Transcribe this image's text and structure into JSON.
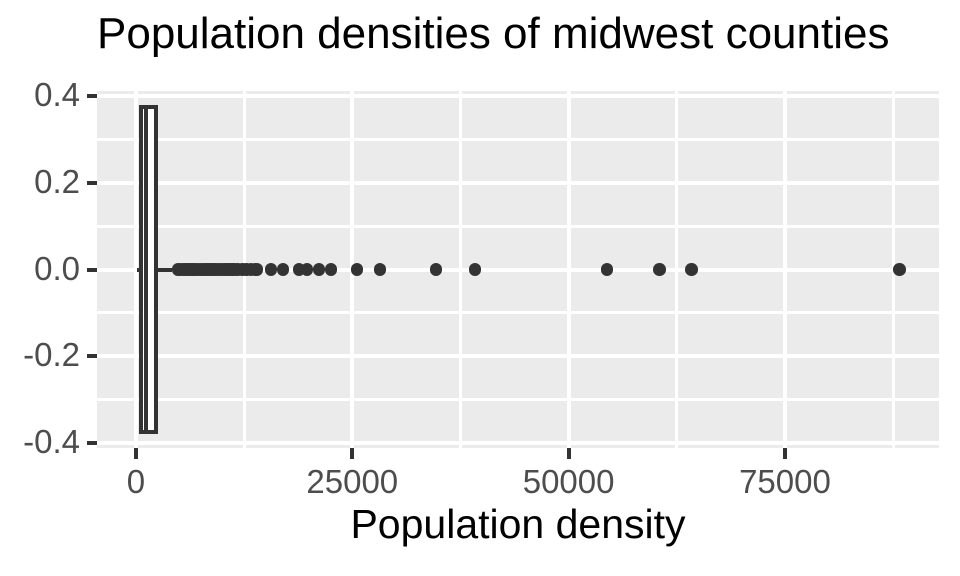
{
  "chart_data": {
    "type": "boxplot",
    "orientation": "horizontal",
    "title": "Population densities of midwest counties",
    "xlabel": "Population density",
    "ylabel": "",
    "grid": true,
    "legend_position": "none",
    "panel_bg_note": "light gray panel with white major and minor gridlines",
    "xlim": [
      -4500,
      92800
    ],
    "ylim": [
      -0.4125,
      0.4125
    ],
    "x_ticks": [
      {
        "value": 0,
        "label": "0"
      },
      {
        "value": 25000,
        "label": "25000"
      },
      {
        "value": 50000,
        "label": "50000"
      },
      {
        "value": 75000,
        "label": "75000"
      }
    ],
    "y_ticks": [
      {
        "value": 0.4,
        "label": "0.4"
      },
      {
        "value": 0.2,
        "label": "0.2"
      },
      {
        "value": 0.0,
        "label": "0.0"
      },
      {
        "value": -0.2,
        "label": "-0.2"
      },
      {
        "value": -0.4,
        "label": "-0.4"
      }
    ],
    "x_minor": [
      12500,
      37500,
      62500,
      87500
    ],
    "y_minor": [
      0.3,
      0.1,
      -0.1,
      -0.3
    ],
    "box": {
      "y_center": 0,
      "box_half_height": 0.375,
      "min": 85,
      "q1": 620,
      "median": 1160,
      "q3": 2330,
      "whisker_high": 4160
    },
    "outliers": [
      4870,
      5200,
      5530,
      5860,
      6190,
      6520,
      6850,
      7180,
      7510,
      7840,
      8170,
      8500,
      8830,
      9160,
      9490,
      9820,
      10150,
      10480,
      10810,
      11140,
      11470,
      11800,
      12300,
      12800,
      13300,
      13750,
      14000,
      15600,
      17000,
      18850,
      19770,
      21160,
      22550,
      25550,
      28210,
      34680,
      39190,
      54440,
      60500,
      64200,
      88250
    ],
    "colors": {
      "panel_bg": "#EBEBEB",
      "grid": "#FFFFFF",
      "box_stroke": "#333333",
      "box_fill": "#FFFFFF",
      "point": "#333333",
      "tick_mark": "#333333",
      "tick_label": "#4D4D4D",
      "title": "#000000",
      "axis_title": "#000000",
      "plot_bg": "#FFFFFF"
    }
  }
}
